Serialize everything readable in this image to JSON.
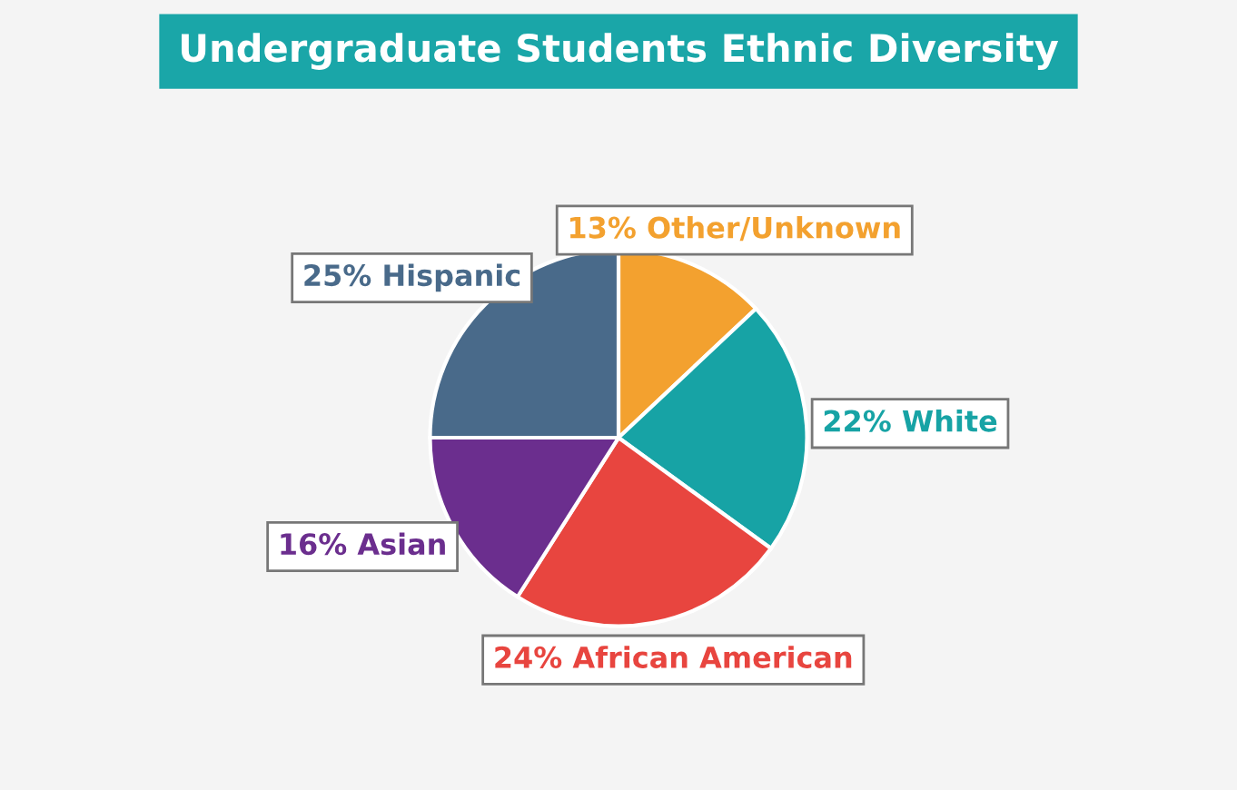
{
  "chart_data": {
    "type": "pie",
    "title": "Undergraduate Students Ethnic Diversity",
    "categories": [
      "Other/Unknown",
      "White",
      "African American",
      "Asian",
      "Hispanic"
    ],
    "values": [
      13,
      22,
      24,
      16,
      25
    ],
    "value_labels": [
      "13%",
      "22%",
      "24%",
      "16%",
      "25%"
    ],
    "colors": [
      "#f3a12f",
      "#17a3a5",
      "#e8453f",
      "#6b2e8e",
      "#496a8a"
    ],
    "legend": false
  }
}
